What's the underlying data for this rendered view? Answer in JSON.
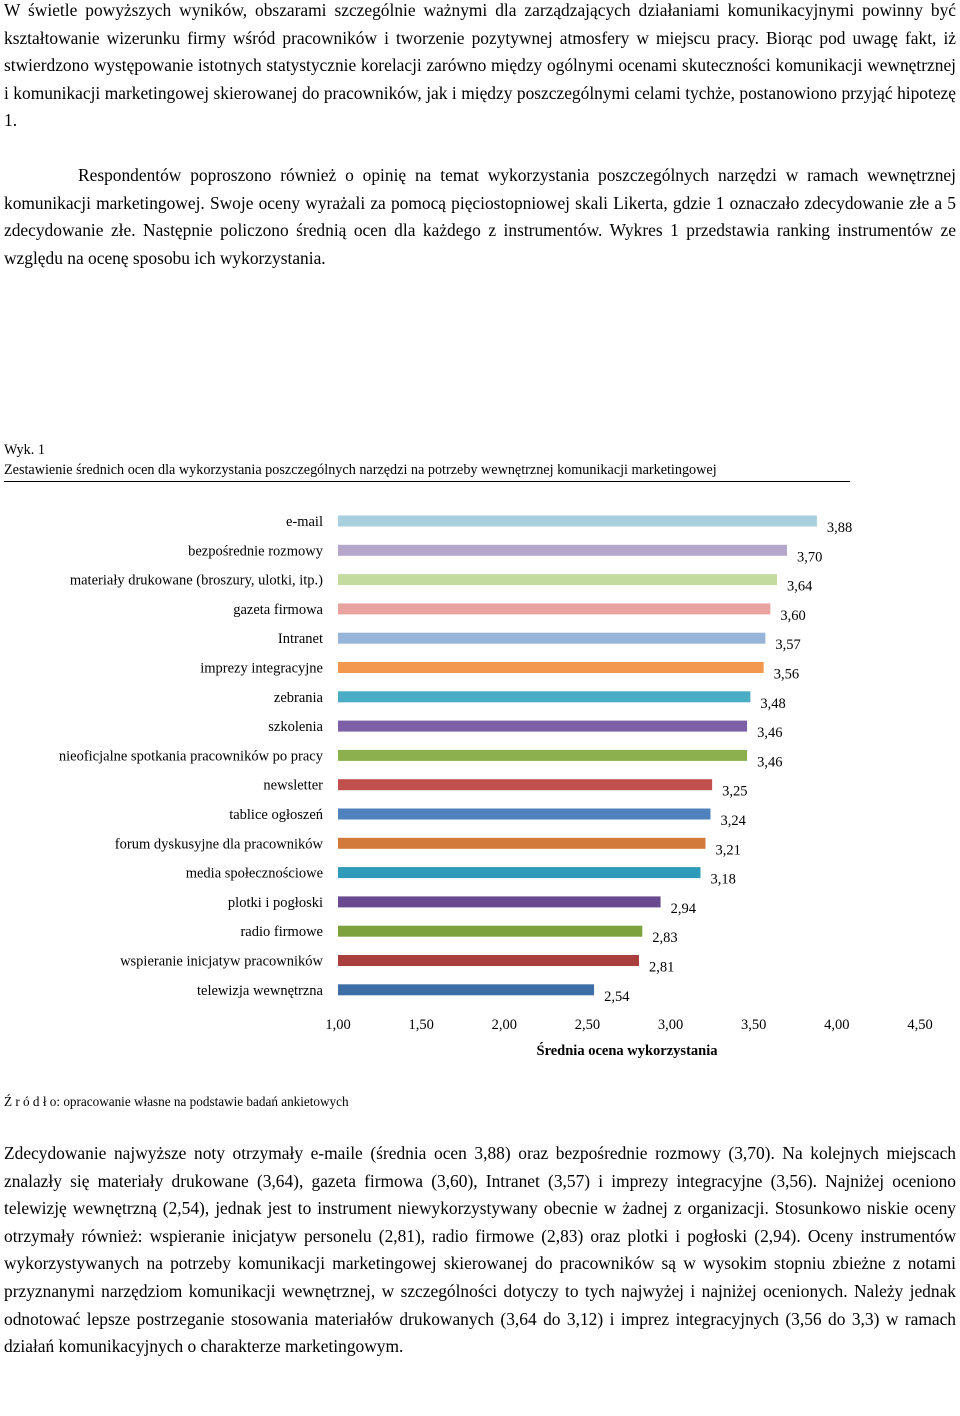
{
  "paragraphs": {
    "intro": "W świetle powyższych wyników, obszarami szczególnie ważnymi dla zarządzających działaniami komunikacyjnymi powinny być kształtowanie wizerunku firmy wśród pracowników i tworzenie pozytywnej atmosfery w miejscu pracy. Biorąc pod uwagę fakt, iż stwierdzono występowanie istotnych statystycznie korelacji zarówno między ogólnymi ocenami skuteczności komunikacji wewnętrznej i komunikacji marketingowej skierowanej do pracowników, jak i między poszczególnymi celami tychże, postanowiono przyjąć hipotezę 1.",
    "method": "Respondentów poproszono również o opinię na temat wykorzystania poszczególnych narzędzi w ramach wewnętrznej komunikacji marketingowej. Swoje oceny wyrażali za pomocą pięciostopniowej skali Likerta, gdzie 1 oznaczało zdecydowanie złe a 5 zdecydowanie złe. Następnie policzono średnią ocen dla każdego z instrumentów. Wykres 1 przedstawia ranking instrumentów ze względu na ocenę sposobu ich wykorzystania.",
    "conclusion": "Zdecydowanie najwyższe noty otrzymały e-maile (średnia ocen 3,88) oraz bezpośrednie rozmowy (3,70). Na kolejnych miejscach znalazły się materiały drukowane (3,64), gazeta firmowa (3,60), Intranet (3,57) i imprezy integracyjne (3,56). Najniżej oceniono telewizję wewnętrzną (2,54), jednak jest to instrument niewykorzystywany obecnie w żadnej z organizacji. Stosunkowo niskie oceny otrzymały również: wspieranie inicjatyw personelu (2,81), radio firmowe (2,83) oraz plotki i pogłoski (2,94). Oceny instrumentów wykorzystywanych na potrzeby komunikacji marketingowej skierowanej do pracowników są w wysokim stopniu zbieżne z notami przyznanymi narzędziom komunikacji wewnętrznej, w szczególności dotyczy to tych najwyżej i najniżej ocenionych. Należy jednak odnotować lepsze postrzeganie stosowania materiałów drukowanych (3,64 do 3,12) i imprez integracyjnych (3,56 do 3,3) w ramach działań komunikacyjnych o charakterze marketingowym."
  },
  "figure": {
    "number": "Wyk. 1",
    "title": "Zestawienie średnich ocen dla wykorzystania poszczególnych narzędzi na potrzeby wewnętrznej komunikacji marketingowej",
    "source": "Ź r ó d ł o: opracowanie własne na podstawie badań ankietowych"
  },
  "chart_data": {
    "type": "bar",
    "orientation": "horizontal",
    "xlabel": "Średnia ocena wykorzystania",
    "xlim": [
      1.0,
      4.5
    ],
    "x_ticks": [
      1.0,
      1.5,
      2.0,
      2.5,
      3.0,
      3.5,
      4.0,
      4.5
    ],
    "x_tick_labels": [
      "1,00",
      "1,50",
      "2,00",
      "2,50",
      "3,00",
      "3,50",
      "4,00",
      "4,50"
    ],
    "grid": false,
    "legend": "none",
    "categories": [
      "e-mail",
      "bezpośrednie rozmowy",
      "materiały drukowane (broszury, ulotki, itp.)",
      "gazeta firmowa",
      "Intranet",
      "imprezy integracyjne",
      "zebrania",
      "szkolenia",
      "nieoficjalne spotkania pracowników po pracy",
      "newsletter",
      "tablice ogłoszeń",
      "forum dyskusyjne dla pracowników",
      "media społecznościowe",
      "plotki i pogłoski",
      "radio firmowe",
      "wspieranie inicjatyw pracowników",
      "telewizja wewnętrzna"
    ],
    "values": [
      3.88,
      3.7,
      3.64,
      3.6,
      3.57,
      3.56,
      3.48,
      3.46,
      3.46,
      3.25,
      3.24,
      3.21,
      3.18,
      2.94,
      2.83,
      2.81,
      2.54
    ],
    "value_labels": [
      "3,88",
      "3,70",
      "3,64",
      "3,60",
      "3,57",
      "3,56",
      "3,48",
      "3,46",
      "3,46",
      "3,25",
      "3,24",
      "3,21",
      "3,18",
      "2,94",
      "2,83",
      "2,81",
      "2,54"
    ],
    "colors": [
      "#a8cfdd",
      "#b4a7cb",
      "#c4dba0",
      "#e8a3a1",
      "#97b5d8",
      "#f2994f",
      "#4bacc6",
      "#7c5fa5",
      "#8bb04d",
      "#c0504d",
      "#4f81bd",
      "#d27a3c",
      "#2e9bb8",
      "#6a4a8f",
      "#7da23d",
      "#a83f3c",
      "#3e6ea6"
    ]
  }
}
